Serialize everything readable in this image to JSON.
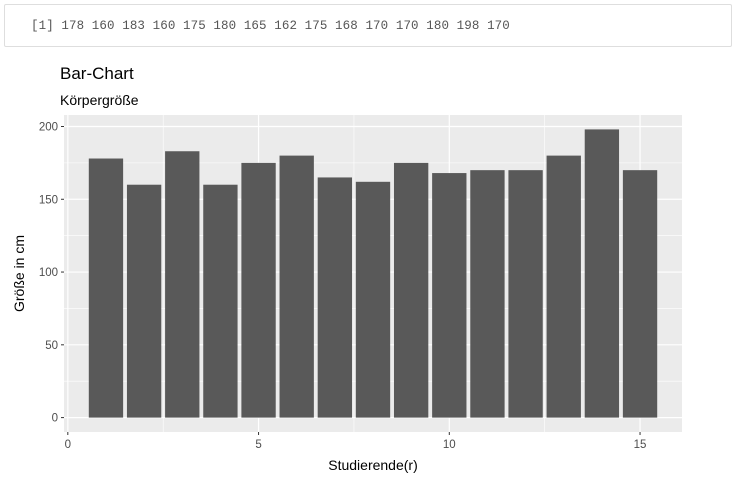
{
  "console": {
    "output": "[1] 178 160 183 160 175 180 165 162 175 168 170 170 180 198 170"
  },
  "chart_data": {
    "type": "bar",
    "title": "Bar-Chart",
    "subtitle": "Körpergröße",
    "xlabel": "Studierende(r)",
    "ylabel": "Größe in cm",
    "x": [
      1,
      2,
      3,
      4,
      5,
      6,
      7,
      8,
      9,
      10,
      11,
      12,
      13,
      14,
      15
    ],
    "values": [
      178,
      160,
      183,
      160,
      175,
      180,
      165,
      162,
      175,
      168,
      170,
      170,
      180,
      198,
      170
    ],
    "xlim": [
      -0.1,
      16.1
    ],
    "ylim": [
      -9.9,
      207.9
    ],
    "xticks": [
      0,
      5,
      10,
      15
    ],
    "yticks": [
      0,
      50,
      100,
      150,
      200
    ],
    "bar_color": "#595959",
    "panel_background": "#ebebeb",
    "grid_color": "#ffffff",
    "grid": true
  }
}
